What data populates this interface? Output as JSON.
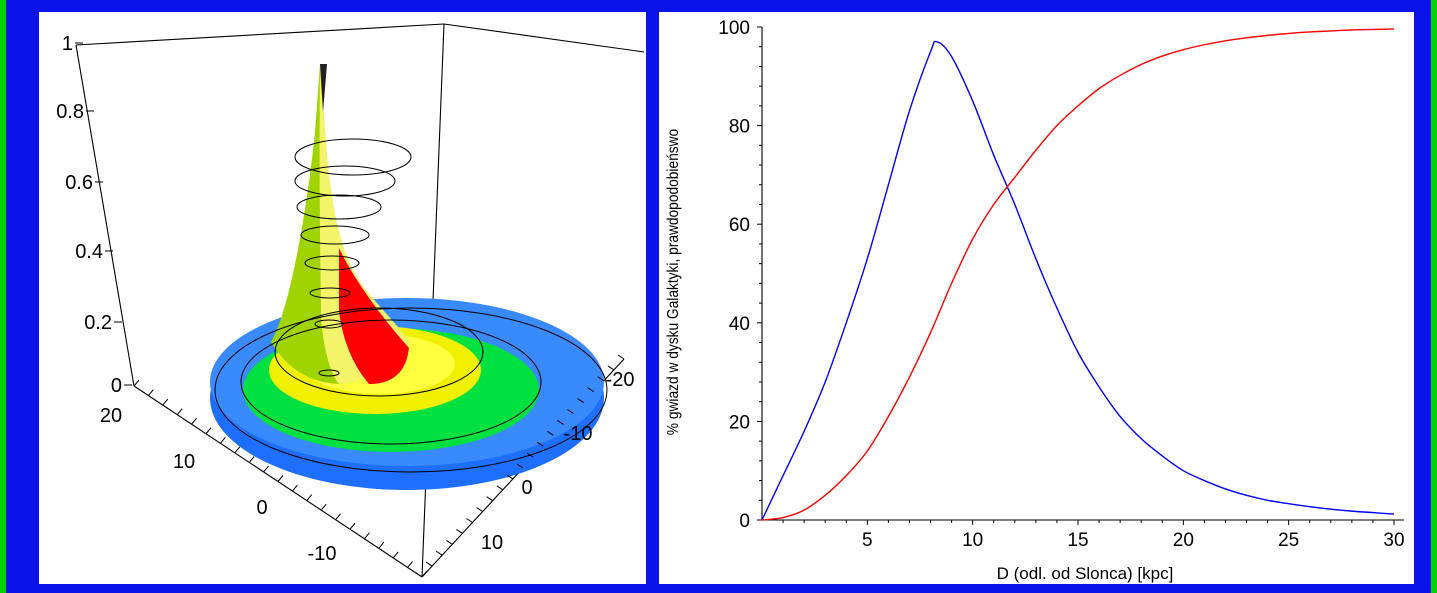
{
  "chart_data": [
    {
      "type": "surface3d",
      "z_ticks": [
        "0",
        "0.2",
        "0.4",
        "0.6",
        "0.8",
        "1"
      ],
      "x_ticks": [
        "20",
        "10",
        "0",
        "-10"
      ],
      "y_ticks": [
        "-20",
        "-10",
        "0",
        "10"
      ],
      "zlim": [
        0,
        1
      ],
      "contour_levels": [
        0.1,
        0.2,
        0.3,
        0.4,
        0.5,
        0.6,
        0.7,
        0.8
      ],
      "colors": {
        "high": "#ff0000",
        "mid_high": "#ffff00",
        "mid": "#00e040",
        "low": "#1e6fff",
        "peak": "#f4f46a"
      }
    },
    {
      "type": "line",
      "xlabel": "D (odl. od Slonca) [kpc]",
      "ylabel": "% gwiazd w dysku Galaktyki, prawdopodobieńswo",
      "xlim": [
        0,
        30
      ],
      "ylim": [
        0,
        100
      ],
      "x_ticks": [
        5,
        10,
        15,
        20,
        25,
        30
      ],
      "y_ticks": [
        0,
        20,
        40,
        60,
        80,
        100
      ],
      "grid": false,
      "series": [
        {
          "color": "#0000ff",
          "x": [
            0,
            1,
            2,
            3,
            4,
            5,
            6,
            7,
            8,
            8.3,
            9,
            10,
            11,
            12,
            13,
            14,
            15,
            16,
            17,
            18,
            19,
            20,
            21,
            22,
            23,
            24,
            25,
            26,
            27,
            28,
            29,
            30
          ],
          "values": [
            0,
            9,
            18,
            28,
            40,
            53,
            68,
            83,
            95,
            97,
            94,
            85,
            74,
            64,
            53,
            43,
            34,
            27,
            21,
            16.5,
            13,
            10,
            8,
            6.3,
            5,
            4,
            3.3,
            2.7,
            2.2,
            1.8,
            1.5,
            1.2
          ]
        },
        {
          "color": "#ff0000",
          "x": [
            0,
            1,
            2,
            3,
            4,
            5,
            6,
            7,
            8,
            9,
            10,
            11,
            12,
            13,
            14,
            15,
            16,
            17,
            18,
            19,
            20,
            21,
            22,
            23,
            24,
            25,
            26,
            27,
            28,
            29,
            30
          ],
          "values": [
            0,
            0.5,
            2,
            5,
            9,
            14,
            21,
            29,
            38,
            48,
            57,
            64,
            69.5,
            75,
            80,
            84,
            87.5,
            90.2,
            92.4,
            94.1,
            95.4,
            96.4,
            97.2,
            97.8,
            98.3,
            98.7,
            99,
            99.2,
            99.4,
            99.5,
            99.6
          ]
        }
      ]
    }
  ]
}
